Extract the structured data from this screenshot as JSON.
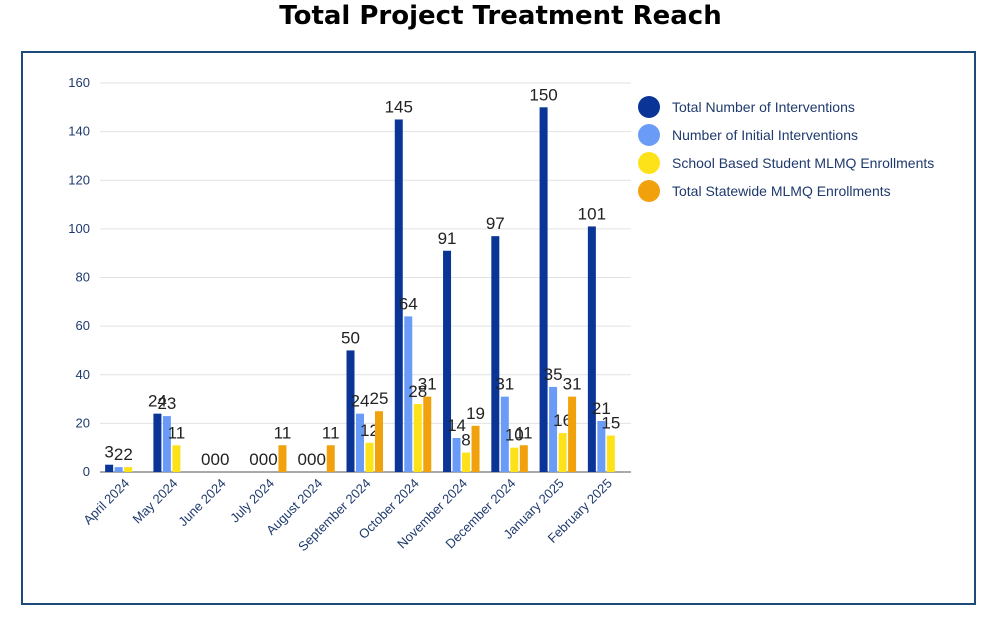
{
  "title": "Total Project Treatment Reach",
  "chart_data": {
    "type": "bar",
    "categories": [
      "April 2024",
      "May 2024",
      "June 2024",
      "July 2024",
      "August 2024",
      "September 2024",
      "October 2024",
      "November 2024",
      "December 2024",
      "January 2025",
      "February 2025"
    ],
    "series": [
      {
        "name": "Total Number of Interventions",
        "color": "#0a3596",
        "values": [
          3,
          24,
          0,
          0,
          0,
          50,
          145,
          91,
          97,
          150,
          101
        ],
        "labels": [
          "3",
          "24",
          "0",
          "0",
          "0",
          "50",
          "145",
          "91",
          "97",
          "150",
          "101"
        ]
      },
      {
        "name": "Number of Initial Interventions",
        "color": "#6a9cf7",
        "values": [
          2,
          23,
          0,
          0,
          0,
          24,
          64,
          14,
          31,
          35,
          21
        ],
        "labels": [
          "2",
          "23",
          "0",
          "0",
          "0",
          "24",
          "64",
          "14",
          "31",
          "35",
          "21"
        ]
      },
      {
        "name": "School Based Student MLMQ Enrollments",
        "color": "#fde21a",
        "values": [
          2,
          11,
          0,
          0,
          0,
          12,
          28,
          8,
          10,
          16,
          15
        ],
        "labels": [
          "2",
          "11",
          "0",
          "0",
          "0",
          "12",
          "28",
          "8",
          "10",
          "16",
          "15"
        ]
      },
      {
        "name": "Total Statewide MLMQ Enrollments",
        "color": "#f0a10b",
        "values": [
          null,
          null,
          null,
          11,
          11,
          25,
          31,
          19,
          11,
          31,
          null
        ],
        "labels": [
          "",
          "",
          "",
          "11",
          "11",
          "25",
          "31",
          "19",
          "11",
          "31",
          ""
        ]
      }
    ],
    "ylim": [
      0,
      160
    ],
    "yticks": [
      0,
      20,
      40,
      60,
      80,
      100,
      120,
      140,
      160
    ],
    "xlabel": "",
    "ylabel": "",
    "grid": true,
    "legend": "right"
  }
}
